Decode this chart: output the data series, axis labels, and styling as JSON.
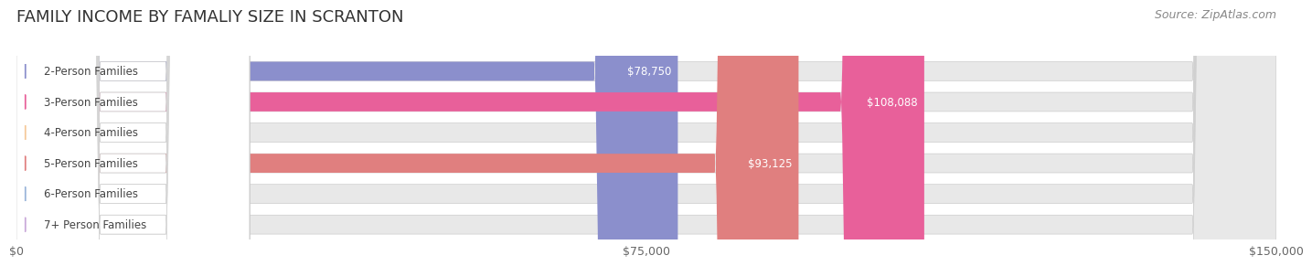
{
  "title": "FAMILY INCOME BY FAMALIY SIZE IN SCRANTON",
  "source": "Source: ZipAtlas.com",
  "categories": [
    "2-Person Families",
    "3-Person Families",
    "4-Person Families",
    "5-Person Families",
    "6-Person Families",
    "7+ Person Families"
  ],
  "values": [
    78750,
    108088,
    0,
    93125,
    0,
    0
  ],
  "bar_colors": [
    "#8b8fcc",
    "#e8609a",
    "#f5c99a",
    "#e07f7f",
    "#9ab5d9",
    "#c9a9d9"
  ],
  "label_colors": [
    "#555555",
    "#ffffff",
    "#555555",
    "#ffffff",
    "#555555",
    "#555555"
  ],
  "xlim": [
    0,
    150000
  ],
  "xticks": [
    0,
    75000,
    150000
  ],
  "xtick_labels": [
    "$0",
    "$75,000",
    "$150,000"
  ],
  "bg_color": "#f0f0f0",
  "bar_bg_color": "#e8e8e8",
  "title_fontsize": 13,
  "source_fontsize": 9,
  "label_fontsize": 8.5,
  "tick_fontsize": 9,
  "bar_height": 0.62,
  "fig_width": 14.06,
  "fig_height": 3.05
}
